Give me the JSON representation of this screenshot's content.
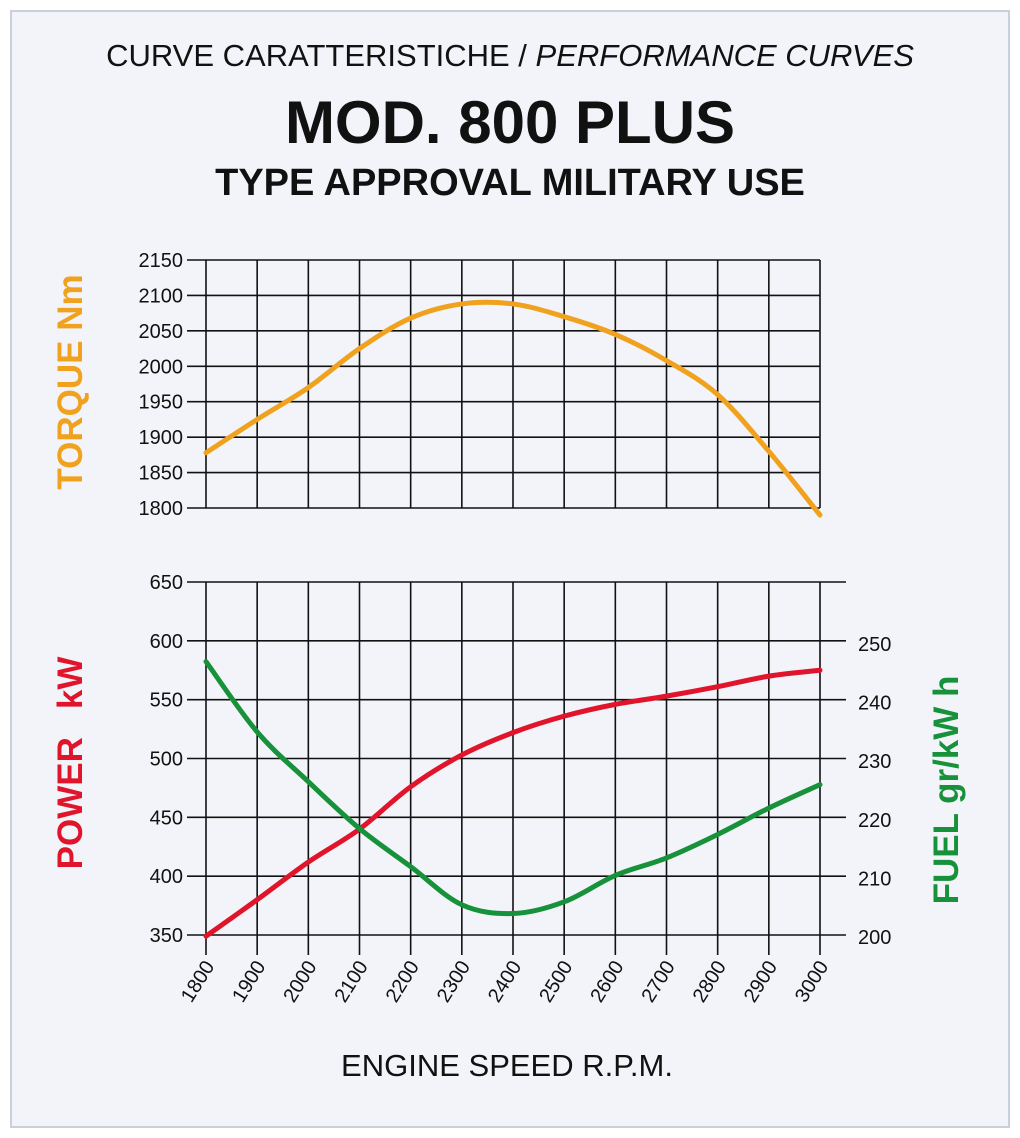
{
  "header": {
    "line1_regular": "CURVE CARATTERISTICHE / ",
    "line1_italic": "PERFORMANCE CURVES",
    "title": "MOD. 800 PLUS",
    "subtitle": "TYPE APPROVAL MILITARY USE"
  },
  "colors": {
    "torque": "#f0a21e",
    "power": "#e0142a",
    "fuel": "#17913a",
    "grid": "#111111",
    "background": "#f2f4f9"
  },
  "chart_data": {
    "type": "line",
    "x": [
      1800,
      1900,
      2000,
      2100,
      2200,
      2300,
      2400,
      2500,
      2600,
      2700,
      2800,
      2900,
      3000
    ],
    "xlabel": "ENGINE SPEED R.P.M.",
    "xlim": [
      1800,
      3000
    ],
    "x_ticks": [
      "1800",
      "1900",
      "2000",
      "2100",
      "2200",
      "2300",
      "2400",
      "2500",
      "2600",
      "2700",
      "2800",
      "2900",
      "3000"
    ],
    "grid": true,
    "torque_axis": {
      "label": "TORQUE Nm",
      "ylim": [
        1800,
        2150
      ],
      "ticks": [
        "2150",
        "2100",
        "2050",
        "2000",
        "1950",
        "1900",
        "1850",
        "1800"
      ]
    },
    "power_axis": {
      "label_word1": "POWER",
      "label_word2": "kW",
      "ylim": [
        350,
        650
      ],
      "ticks": [
        "650",
        "600",
        "550",
        "500",
        "450",
        "400",
        "350"
      ]
    },
    "fuel_axis": {
      "label": "FUEL gr/kW h",
      "ylim": [
        200,
        250
      ],
      "ticks": [
        "250",
        "240",
        "230",
        "220",
        "210",
        "200"
      ]
    },
    "series": [
      {
        "name": "TORQUE Nm",
        "axis": "torque",
        "values": [
          1878,
          1925,
          1970,
          2025,
          2068,
          2088,
          2088,
          2070,
          2045,
          2008,
          1960,
          1880,
          1790
        ]
      },
      {
        "name": "POWER kW",
        "axis": "power",
        "values": [
          349,
          380,
          412,
          440,
          476,
          503,
          522,
          536,
          546,
          553,
          561,
          570,
          575
        ]
      },
      {
        "name": "FUEL gr/kW h",
        "axis": "fuel",
        "values": [
          247,
          235,
          226.5,
          218.5,
          212,
          205.5,
          204,
          206,
          210.5,
          213.5,
          217.5,
          222,
          226
        ]
      }
    ]
  }
}
